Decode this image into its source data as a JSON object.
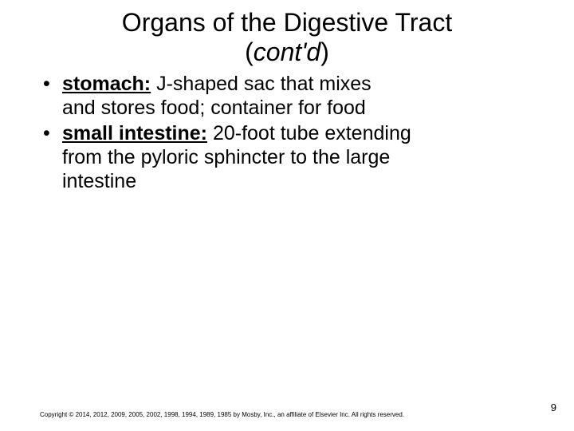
{
  "title": {
    "line1": "Organs of the Digestive Tract",
    "line2_open": "(",
    "line2_italic": "cont'd",
    "line2_close": ")"
  },
  "bullets": {
    "b1_term": "stomach:",
    "b1_rest_lead": " J-shaped sac that mixes",
    "b1_rest_wrap": "and stores food; container for food",
    "b2_term": "small intestine:",
    "b2_rest_lead": " 20-foot tube extending",
    "b2_rest_wrap1": "from the pyloric sphincter to the large",
    "b2_rest_wrap2": "intestine"
  },
  "footer": "Copyright © 2014, 2012, 2009, 2005, 2002, 1998, 1994, 1989, 1985 by Mosby, Inc., an affiliate of Elsevier Inc. All rights reserved.",
  "page_number": "9"
}
